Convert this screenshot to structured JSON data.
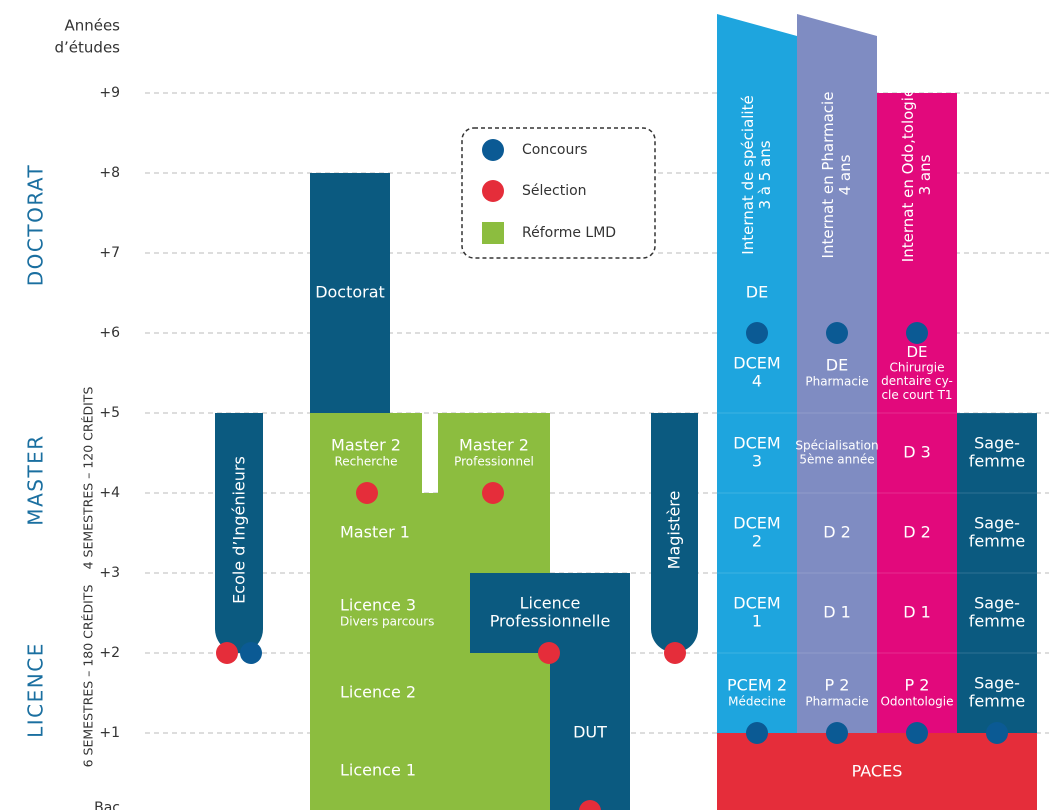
{
  "axis": {
    "title": [
      "Années",
      "d’études"
    ],
    "ticks": [
      "+9",
      "+8",
      "+7",
      "+6",
      "+5",
      "+4",
      "+3",
      "+2",
      "+1",
      "Bac"
    ]
  },
  "sections": [
    {
      "label": "DOCTORAT"
    },
    {
      "label": "MASTER",
      "credits": "4 SEMESTRES – 120 CRÉDITS"
    },
    {
      "label": "LICENCE",
      "credits": "6 SEMESTRES – 180 CRÉDITS"
    }
  ],
  "legend": [
    "Concours",
    "Sélection",
    "Réforme LMD"
  ],
  "blocks": [
    {
      "lines": [
        "Doctorat"
      ]
    },
    {
      "lines": [
        "Master 2",
        "Recherche"
      ]
    },
    {
      "lines": [
        "Master 2",
        "Professionnel"
      ]
    },
    {
      "lines": [
        "Master 1"
      ]
    },
    {
      "lines": [
        "Licence 3",
        "Divers parcours"
      ]
    },
    {
      "lines": [
        "Licence 2"
      ]
    },
    {
      "lines": [
        "Licence 1"
      ]
    },
    {
      "lines": [
        "Licence",
        "Professionnelle"
      ]
    },
    {
      "lines": [
        "DUT"
      ]
    },
    {
      "lines": [
        "Ecole d’Ingénieurs"
      ]
    },
    {
      "lines": [
        "Magistère"
      ]
    },
    {
      "lines": [
        "PACES"
      ]
    }
  ],
  "columns": [
    {
      "header": [
        "Internat de spécialité",
        "3 à 5 ans"
      ],
      "cells": [
        [
          "DE"
        ],
        [
          "DCEM",
          "4"
        ],
        [
          "DCEM",
          "3"
        ],
        [
          "DCEM",
          "2"
        ],
        [
          "DCEM",
          "1"
        ],
        [
          "PCEM 2",
          "Médecine"
        ]
      ]
    },
    {
      "header": [
        "Internat en Pharmacie",
        "4 ans"
      ],
      "cells": [
        [
          "DE",
          "Pharmacie"
        ],
        [
          "Spécialisation",
          "5ème année"
        ],
        [
          "D 2"
        ],
        [
          "D 1"
        ],
        [
          "P 2",
          "Pharmacie"
        ]
      ]
    },
    {
      "header": [
        "Internat en Odo,tologie",
        "3 ans"
      ],
      "cells": [
        [
          "DE",
          "Chirurgie",
          "dentaire cy-",
          "cle court T1"
        ],
        [
          "D 3"
        ],
        [
          "D 2"
        ],
        [
          "D 1"
        ],
        [
          "P 2",
          "Odontologie"
        ]
      ]
    },
    {
      "cells": [
        [
          "Sage-",
          "femme"
        ],
        [
          "Sage-",
          "femme"
        ],
        [
          "Sage-",
          "femme"
        ],
        [
          "Sage-",
          "femme"
        ]
      ]
    }
  ]
}
